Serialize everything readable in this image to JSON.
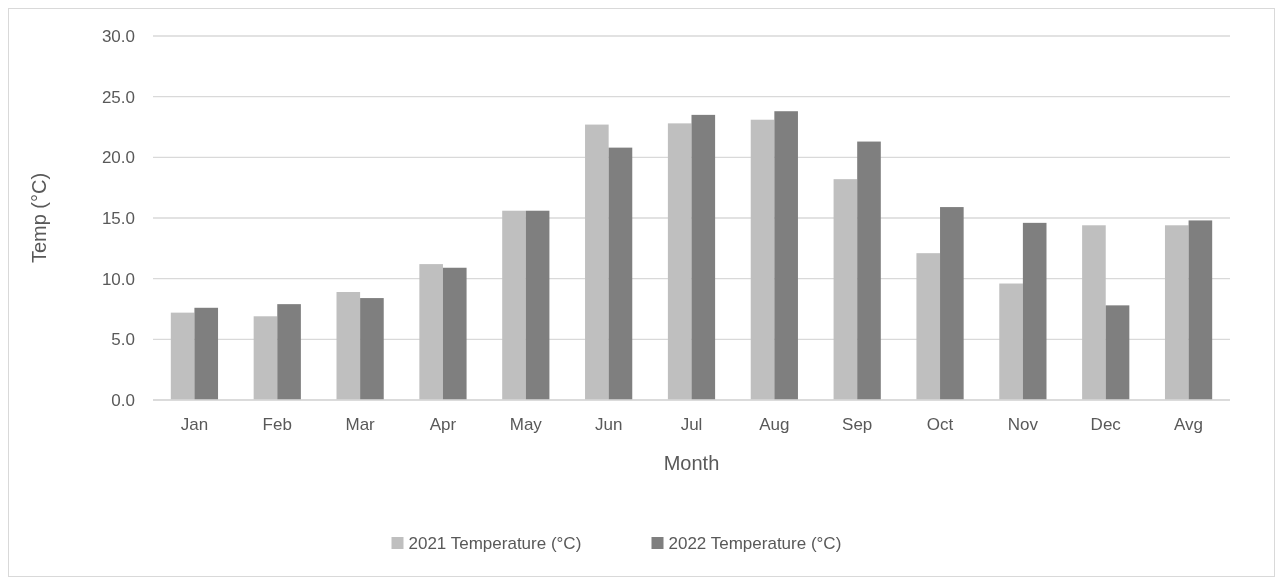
{
  "chart_data": {
    "type": "bar",
    "xlabel": "Month",
    "ylabel": "Temp (°C)",
    "categories": [
      "Jan",
      "Feb",
      "Mar",
      "Apr",
      "May",
      "Jun",
      "Jul",
      "Aug",
      "Sep",
      "Oct",
      "Nov",
      "Dec",
      "Avg"
    ],
    "series": [
      {
        "name": "2021 Temperature (°C)",
        "color": "#bfbfbf",
        "values": [
          7.2,
          6.9,
          8.9,
          11.2,
          15.6,
          22.7,
          22.8,
          23.1,
          18.2,
          12.1,
          9.6,
          14.4,
          14.4
        ]
      },
      {
        "name": "2022 Temperature (°C)",
        "color": "#7f7f7f",
        "values": [
          7.6,
          7.9,
          8.4,
          10.9,
          15.6,
          20.8,
          23.5,
          23.8,
          21.3,
          15.9,
          14.6,
          7.8,
          14.8
        ]
      }
    ],
    "ylim": [
      0,
      30
    ],
    "yticks": [
      {
        "value": 0,
        "label": "0.0"
      },
      {
        "value": 5,
        "label": "5.0"
      },
      {
        "value": 10,
        "label": "10.0"
      },
      {
        "value": 15,
        "label": "15.0"
      },
      {
        "value": 20,
        "label": "20.0"
      },
      {
        "value": 25,
        "label": "25.0"
      },
      {
        "value": 30,
        "label": "30.0"
      }
    ],
    "grid": "y",
    "legend": "bottom"
  }
}
